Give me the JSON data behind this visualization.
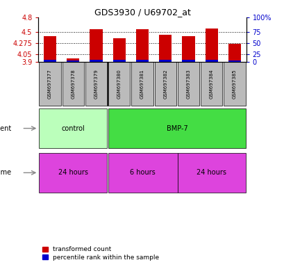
{
  "title": "GDS3930 / U69702_at",
  "samples": [
    "GSM697377",
    "GSM697378",
    "GSM697379",
    "GSM697380",
    "GSM697381",
    "GSM697382",
    "GSM697383",
    "GSM697384",
    "GSM697385"
  ],
  "red_values": [
    4.42,
    3.97,
    4.56,
    4.38,
    4.56,
    4.44,
    4.42,
    4.57,
    4.27
  ],
  "blue_heights": [
    0.035,
    0.03,
    0.04,
    0.035,
    0.038,
    0.037,
    0.033,
    0.037,
    0.032
  ],
  "bar_bottom": 3.9,
  "ylim": [
    3.9,
    4.8
  ],
  "yticks": [
    3.9,
    4.05,
    4.275,
    4.5,
    4.8
  ],
  "ytick_labels": [
    "3.9",
    "4.05",
    "4.275",
    "4.5",
    "4.8"
  ],
  "right_ytick_labels": [
    "0",
    "25",
    "50",
    "75",
    "100%"
  ],
  "red_color": "#cc0000",
  "blue_color": "#0000cc",
  "tick_color_left": "#cc0000",
  "tick_color_right": "#0000cc",
  "sample_box_color": "#bbbbbb",
  "control_color": "#bbffbb",
  "bmp7_color": "#44dd44",
  "time_color": "#dd44dd",
  "figure_bg": "#ffffff",
  "plot_bg": "#ffffff",
  "legend_red": "transformed count",
  "legend_blue": "percentile rank within the sample",
  "bar_width": 0.55,
  "grid_yticks": [
    4.05,
    4.275,
    4.5
  ]
}
